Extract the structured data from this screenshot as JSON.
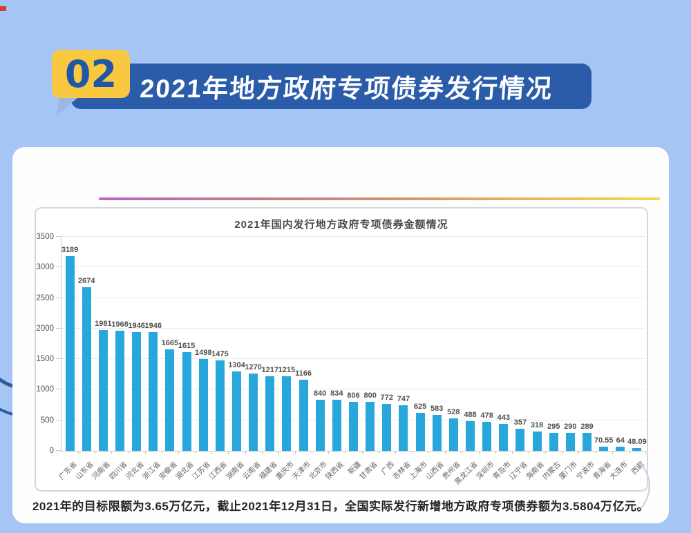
{
  "page": {
    "background_color": "#a5c6f5"
  },
  "header": {
    "badge_number": "02",
    "title": "2021年地方政府专项债券发行情况",
    "badge_color": "#f7c840",
    "banner_color": "#2b5ca9",
    "badge_text_color": "#1e57a8"
  },
  "card": {
    "footnote": "2021年的目标限额为3.65万亿元，截止2021年12月31日，全国实际发行新增地方政府专项债券额为3.5804万亿元。"
  },
  "chart_data": {
    "type": "bar",
    "title": "2021年国内发行地方政府专项债券金额情况",
    "categories": [
      "广东省",
      "山东省",
      "河南省",
      "四川省",
      "河北省",
      "浙江省",
      "安徽省",
      "湖北省",
      "江苏省",
      "江西省",
      "湖南省",
      "云南省",
      "福建省",
      "重庆市",
      "天津市",
      "北京市",
      "陕西省",
      "新疆",
      "甘肃省",
      "广西",
      "吉林省",
      "上海市",
      "山西省",
      "贵州省",
      "黑龙江省",
      "深圳市",
      "青岛市",
      "辽宁省",
      "海南省",
      "内蒙古",
      "厦门市",
      "宁波市",
      "青海省",
      "大连市",
      "西藏"
    ],
    "values": [
      3189,
      2674,
      1981,
      1968,
      1946,
      1946,
      1665,
      1615,
      1498,
      1475,
      1304,
      1270,
      1217,
      1215,
      1166,
      840,
      834,
      806,
      800,
      772,
      747,
      625,
      583,
      528,
      488,
      478,
      443,
      357,
      318,
      295,
      290,
      289,
      70.55,
      64,
      48.09
    ],
    "xlabel": "",
    "ylabel": "",
    "ylim": [
      0,
      3500
    ],
    "yticks": [
      0,
      500,
      1000,
      1500,
      2000,
      2500,
      3000,
      3500
    ],
    "bar_color": "#28a7dc",
    "grid": true,
    "legend": false,
    "value_labels": true
  }
}
